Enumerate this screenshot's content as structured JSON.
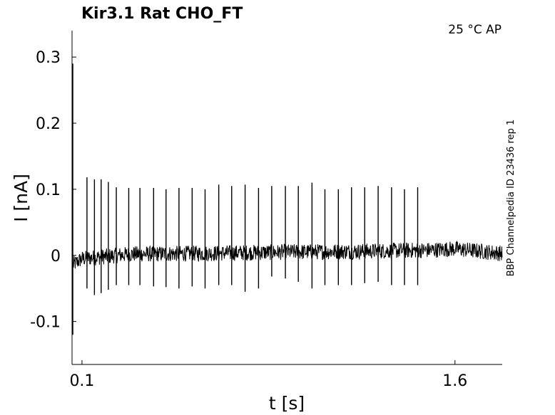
{
  "chart_data": {
    "type": "line",
    "title": "Kir3.1  Rat  CHO_FT",
    "condition": "25 °C  AP",
    "side_label": "BBP Channelpedia ID 23436 rep 1",
    "xlabel": "t [s]",
    "ylabel": "I [nA]",
    "xlim": [
      0.06,
      1.79
    ],
    "ylim": [
      -0.165,
      0.34
    ],
    "x_ticks": [
      0.1,
      1.6
    ],
    "x_tick_labels": [
      "0.1",
      "1.6"
    ],
    "y_ticks": [
      -0.1,
      0,
      0.1,
      0.2,
      0.3
    ],
    "y_tick_labels": [
      "-0.1",
      "0",
      "0.1",
      "0.2",
      "0.3"
    ],
    "grid": false,
    "line_color": "#000000",
    "series": [
      {
        "baseline": [
          {
            "t": 0.06,
            "i": -0.015
          },
          {
            "t": 0.1,
            "i": -0.005
          },
          {
            "t": 0.3,
            "i": 0.002
          },
          {
            "t": 0.6,
            "i": 0.003
          },
          {
            "t": 0.9,
            "i": 0.005
          },
          {
            "t": 1.2,
            "i": 0.006
          },
          {
            "t": 1.5,
            "i": 0.008
          },
          {
            "t": 1.6,
            "i": 0.01
          },
          {
            "t": 1.79,
            "i": 0.003
          }
        ],
        "onset_transient": {
          "t": 0.063,
          "max": 0.29,
          "min": -0.12
        },
        "spikes": [
          {
            "t": 0.12,
            "max": 0.118,
            "min": -0.05
          },
          {
            "t": 0.15,
            "max": 0.115,
            "min": -0.06
          },
          {
            "t": 0.177,
            "max": 0.115,
            "min": -0.057
          },
          {
            "t": 0.206,
            "max": 0.111,
            "min": -0.052
          },
          {
            "t": 0.238,
            "max": 0.103,
            "min": -0.045
          },
          {
            "t": 0.288,
            "max": 0.102,
            "min": -0.045
          },
          {
            "t": 0.333,
            "max": 0.102,
            "min": -0.045
          },
          {
            "t": 0.388,
            "max": 0.102,
            "min": -0.047
          },
          {
            "t": 0.438,
            "max": 0.1,
            "min": -0.048
          },
          {
            "t": 0.49,
            "max": 0.102,
            "min": -0.05
          },
          {
            "t": 0.543,
            "max": 0.102,
            "min": -0.047
          },
          {
            "t": 0.595,
            "max": 0.1,
            "min": -0.05
          },
          {
            "t": 0.65,
            "max": 0.107,
            "min": -0.045
          },
          {
            "t": 0.702,
            "max": 0.105,
            "min": -0.045
          },
          {
            "t": 0.756,
            "max": 0.107,
            "min": -0.055
          },
          {
            "t": 0.81,
            "max": 0.102,
            "min": -0.05
          },
          {
            "t": 0.863,
            "max": 0.105,
            "min": -0.032
          },
          {
            "t": 0.918,
            "max": 0.105,
            "min": -0.035
          },
          {
            "t": 0.97,
            "max": 0.105,
            "min": -0.04
          },
          {
            "t": 1.025,
            "max": 0.11,
            "min": -0.05
          },
          {
            "t": 1.077,
            "max": 0.1,
            "min": -0.045
          },
          {
            "t": 1.131,
            "max": 0.1,
            "min": -0.045
          },
          {
            "t": 1.184,
            "max": 0.103,
            "min": -0.045
          },
          {
            "t": 1.237,
            "max": 0.103,
            "min": -0.042
          },
          {
            "t": 1.291,
            "max": 0.105,
            "min": -0.04
          },
          {
            "t": 1.345,
            "max": 0.103,
            "min": -0.045
          },
          {
            "t": 1.397,
            "max": 0.1,
            "min": -0.045
          },
          {
            "t": 1.45,
            "max": 0.103,
            "min": -0.045
          }
        ],
        "noise_amplitude": 0.012
      }
    ]
  }
}
